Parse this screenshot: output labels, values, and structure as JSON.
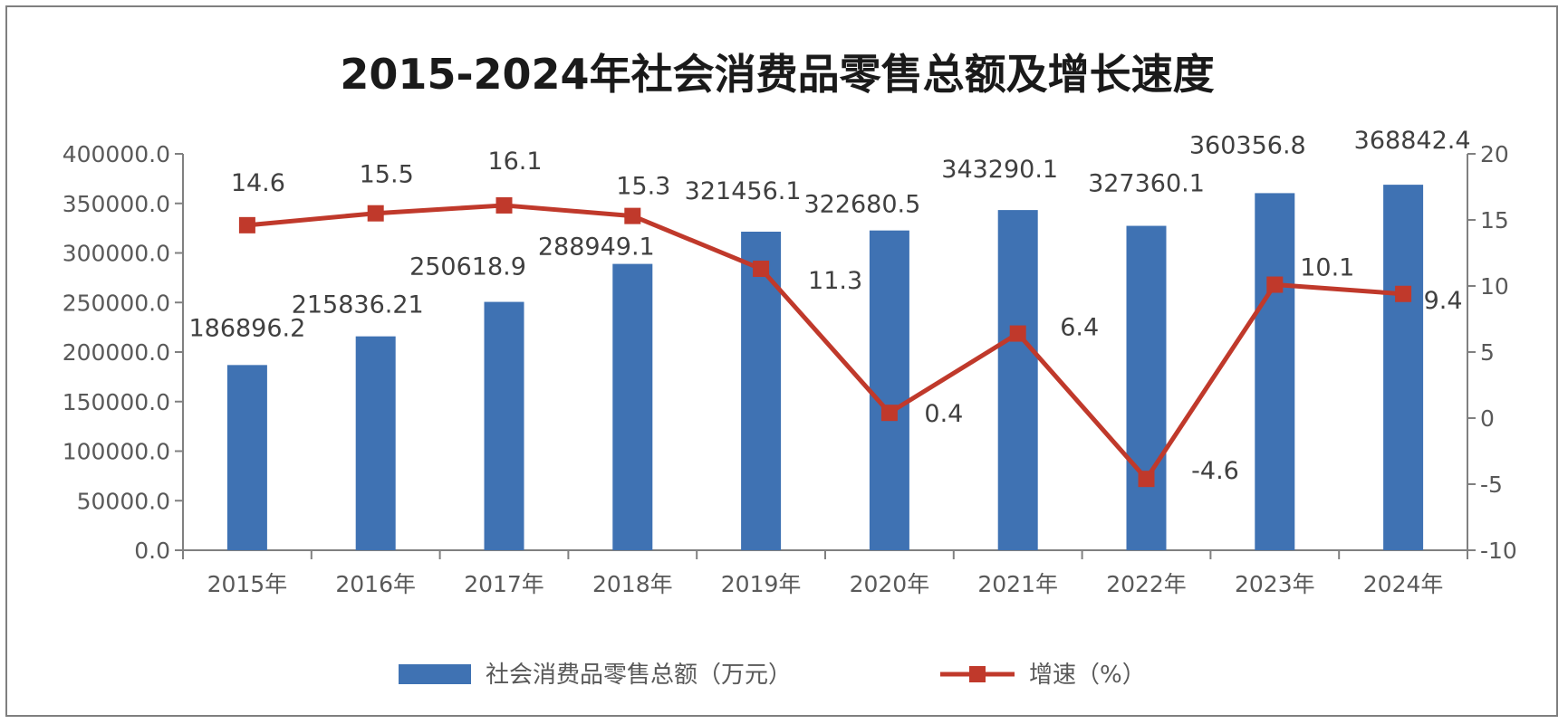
{
  "chart_data": {
    "type": "bar",
    "title": "2015-2024年社会消费品零售总额及增长速度",
    "categories": [
      "2015年",
      "2016年",
      "2017年",
      "2018年",
      "2019年",
      "2020年",
      "2021年",
      "2022年",
      "2023年",
      "2024年"
    ],
    "series": [
      {
        "name": "社会消费品零售总额（万元）",
        "type": "bar",
        "axis": "left",
        "color": "#3f72b3",
        "values": [
          186896.2,
          215836.21,
          250618.9,
          288949.1,
          321456.1,
          322680.5,
          343290.1,
          327360.1,
          360356.8,
          368842.4
        ],
        "labels": [
          "186896.2",
          "215836.21",
          "250618.9",
          "288949.1",
          "321456.1",
          "322680.5",
          "343290.1",
          "327360.1",
          "360356.8",
          "368842.4"
        ]
      },
      {
        "name": "增速（%）",
        "type": "line",
        "axis": "right",
        "color": "#c0392b",
        "values": [
          14.6,
          15.5,
          16.1,
          15.3,
          11.3,
          0.4,
          6.4,
          -4.6,
          10.1,
          9.4
        ],
        "labels": [
          "14.6",
          "15.5",
          "16.1",
          "15.3",
          "11.3",
          "0.4",
          "6.4",
          "-4.6",
          "10.1",
          "9.4"
        ]
      }
    ],
    "y_left": {
      "ylim": [
        0,
        400000
      ],
      "ticks": [
        "0.0",
        "50000.0",
        "100000.0",
        "150000.0",
        "200000.0",
        "250000.0",
        "300000.0",
        "350000.0",
        "400000.0"
      ]
    },
    "y_right": {
      "ylim": [
        -10,
        20
      ],
      "ticks": [
        "-10",
        "-5",
        "0",
        "5",
        "10",
        "15",
        "20"
      ]
    },
    "grid": false,
    "legend": "bottom"
  }
}
